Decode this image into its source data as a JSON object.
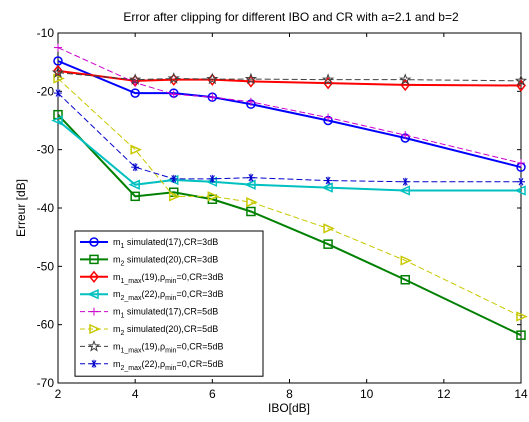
{
  "chart_data": {
    "type": "line",
    "title": "Error after clipping for different IBO and CR with a=2.1 and b=2",
    "xlabel": "IBO[dB]",
    "ylabel": "Erreur [dB]",
    "xlim": [
      2,
      14
    ],
    "ylim": [
      -70,
      -10
    ],
    "xticks": [
      2,
      4,
      6,
      8,
      10,
      12,
      14
    ],
    "yticks": [
      -10,
      -20,
      -30,
      -40,
      -50,
      -60,
      -70
    ],
    "x": [
      2,
      4,
      5,
      6,
      7,
      9,
      11,
      14
    ],
    "legend_position": "lower-left",
    "grid": false,
    "series": [
      {
        "name": "m1 simulated(17),CR=3dB",
        "legend": {
          "base": "m",
          "sub": "1",
          "rest": " simulated(17),CR=3dB"
        },
        "color": "#0000ff",
        "dash": "solid",
        "marker": "circle",
        "width": 2,
        "values": [
          -14.8,
          -20.3,
          -20.3,
          -21.0,
          -22.2,
          -25.0,
          -28.0,
          -33.0
        ]
      },
      {
        "name": "m2 simulated(20),CR=3dB",
        "legend": {
          "base": "m",
          "sub": "2",
          "rest": " simulated(20),CR=3dB"
        },
        "color": "#008000",
        "dash": "solid",
        "marker": "square",
        "width": 2,
        "values": [
          -24.0,
          -38.0,
          -37.3,
          -38.5,
          -40.6,
          -46.2,
          -52.3,
          -61.8
        ]
      },
      {
        "name": "m1_max(19),ρmin=0,CR=3dB",
        "legend": {
          "base": "m",
          "sub": "1_max",
          "rest": "(19),",
          "rho": "ρ",
          "rho_sub": "min",
          "rest2": "=0,CR=3dB"
        },
        "color": "#ff0000",
        "dash": "solid",
        "marker": "diamond",
        "width": 2,
        "values": [
          -16.5,
          -18.2,
          -18.0,
          -18.0,
          -18.3,
          -18.6,
          -18.9,
          -19.0
        ]
      },
      {
        "name": "m2_max(22),ρmin=0,CR=3dB",
        "legend": {
          "base": "m",
          "sub": "2_max",
          "rest": "(22),",
          "rho": "ρ",
          "rho_sub": "min",
          "rest2": "=0,CR=3dB"
        },
        "color": "#00c0c0",
        "dash": "solid",
        "marker": "triangle-left",
        "width": 2,
        "values": [
          -25.0,
          -36.0,
          -35.2,
          -35.5,
          -36.0,
          -36.5,
          -37.0,
          -37.0
        ]
      },
      {
        "name": "m1 simulated(17),CR=5dB",
        "legend": {
          "base": "m",
          "sub": "1",
          "rest": " simulated(17),CR=5dB"
        },
        "color": "#cc00cc",
        "dash": "dashed",
        "marker": "plus",
        "width": 1,
        "values": [
          -12.5,
          -18.5,
          -20.5,
          -21.0,
          -21.8,
          -24.5,
          -27.5,
          -32.3
        ]
      },
      {
        "name": "m2 simulated(20),CR=5dB",
        "legend": {
          "base": "m",
          "sub": "2",
          "rest": " simulated(20),CR=5dB"
        },
        "color": "#c8c800",
        "dash": "dashed",
        "marker": "triangle-right",
        "width": 1,
        "values": [
          -17.8,
          -30.0,
          -38.0,
          -38.0,
          -39.0,
          -43.5,
          -49.0,
          -58.6
        ]
      },
      {
        "name": "m1_max(19),ρmin=0,CR=5dB",
        "legend": {
          "base": "m",
          "sub": "1_max",
          "rest": "(19),",
          "rho": "ρ",
          "rho_sub": "min",
          "rest2": "=0,CR=5dB"
        },
        "color": "#404040",
        "dash": "dashed",
        "marker": "star",
        "width": 1,
        "values": [
          -16.8,
          -18.0,
          -17.8,
          -17.9,
          -17.9,
          -18.0,
          -18.0,
          -18.2
        ]
      },
      {
        "name": "m2_max(22),ρmin=0,CR=5dB",
        "legend": {
          "base": "m",
          "sub": "2_max",
          "rest": "(22),",
          "rho": "ρ",
          "rho_sub": "min",
          "rest2": "=0,CR=5dB"
        },
        "color": "#0000cc",
        "dash": "dashed",
        "marker": "asterisk",
        "width": 1,
        "values": [
          -20.3,
          -33.0,
          -35.0,
          -35.0,
          -34.8,
          -35.3,
          -35.5,
          -35.5
        ]
      }
    ]
  }
}
